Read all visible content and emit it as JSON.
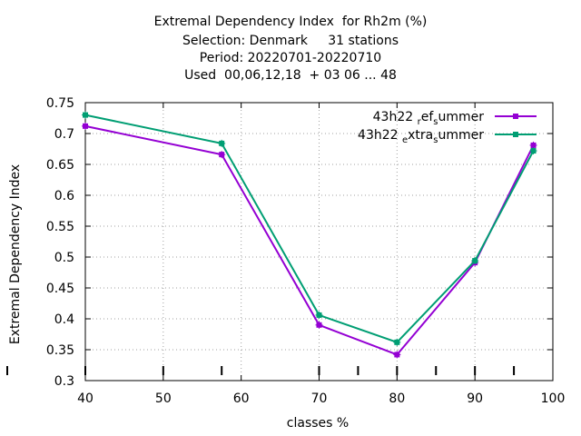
{
  "chart_data": {
    "type": "line",
    "title_lines": [
      "Extremal Dependency Index  for Rh2m (%)",
      "Selection: Denmark     31 stations",
      "Period: 20220701-20220710",
      "Used  00,06,12,18  + 03 06 ... 48"
    ],
    "xlabel": "classes %",
    "ylabel": "Extremal Dependency Index",
    "xlim": [
      40,
      100
    ],
    "ylim": [
      0.3,
      0.75
    ],
    "xticks": [
      40,
      50,
      60,
      70,
      80,
      90,
      100
    ],
    "yticks": [
      0.3,
      0.35,
      0.4,
      0.45,
      0.5,
      0.55,
      0.6,
      0.65,
      0.7,
      0.75
    ],
    "grid": true,
    "legend_position": "top-right",
    "bottom_marks": [
      40,
      50,
      57.5,
      70,
      75,
      80,
      85,
      90,
      95
    ],
    "series": [
      {
        "name": "43h22 ref summer",
        "legend_parts": [
          "43h22 ",
          "r",
          "ef",
          "s",
          "ummer"
        ],
        "color": "#9400d3",
        "x": [
          40,
          57.5,
          70,
          80,
          90,
          97.5
        ],
        "y": [
          0.712,
          0.666,
          0.39,
          0.342,
          0.491,
          0.681
        ]
      },
      {
        "name": "43h22 extra summer",
        "legend_parts": [
          "43h22 ",
          "e",
          "xtra",
          "s",
          "ummer"
        ],
        "color": "#009e73",
        "x": [
          40,
          57.5,
          70,
          80,
          90,
          97.5
        ],
        "y": [
          0.73,
          0.684,
          0.406,
          0.362,
          0.494,
          0.672
        ]
      }
    ]
  }
}
